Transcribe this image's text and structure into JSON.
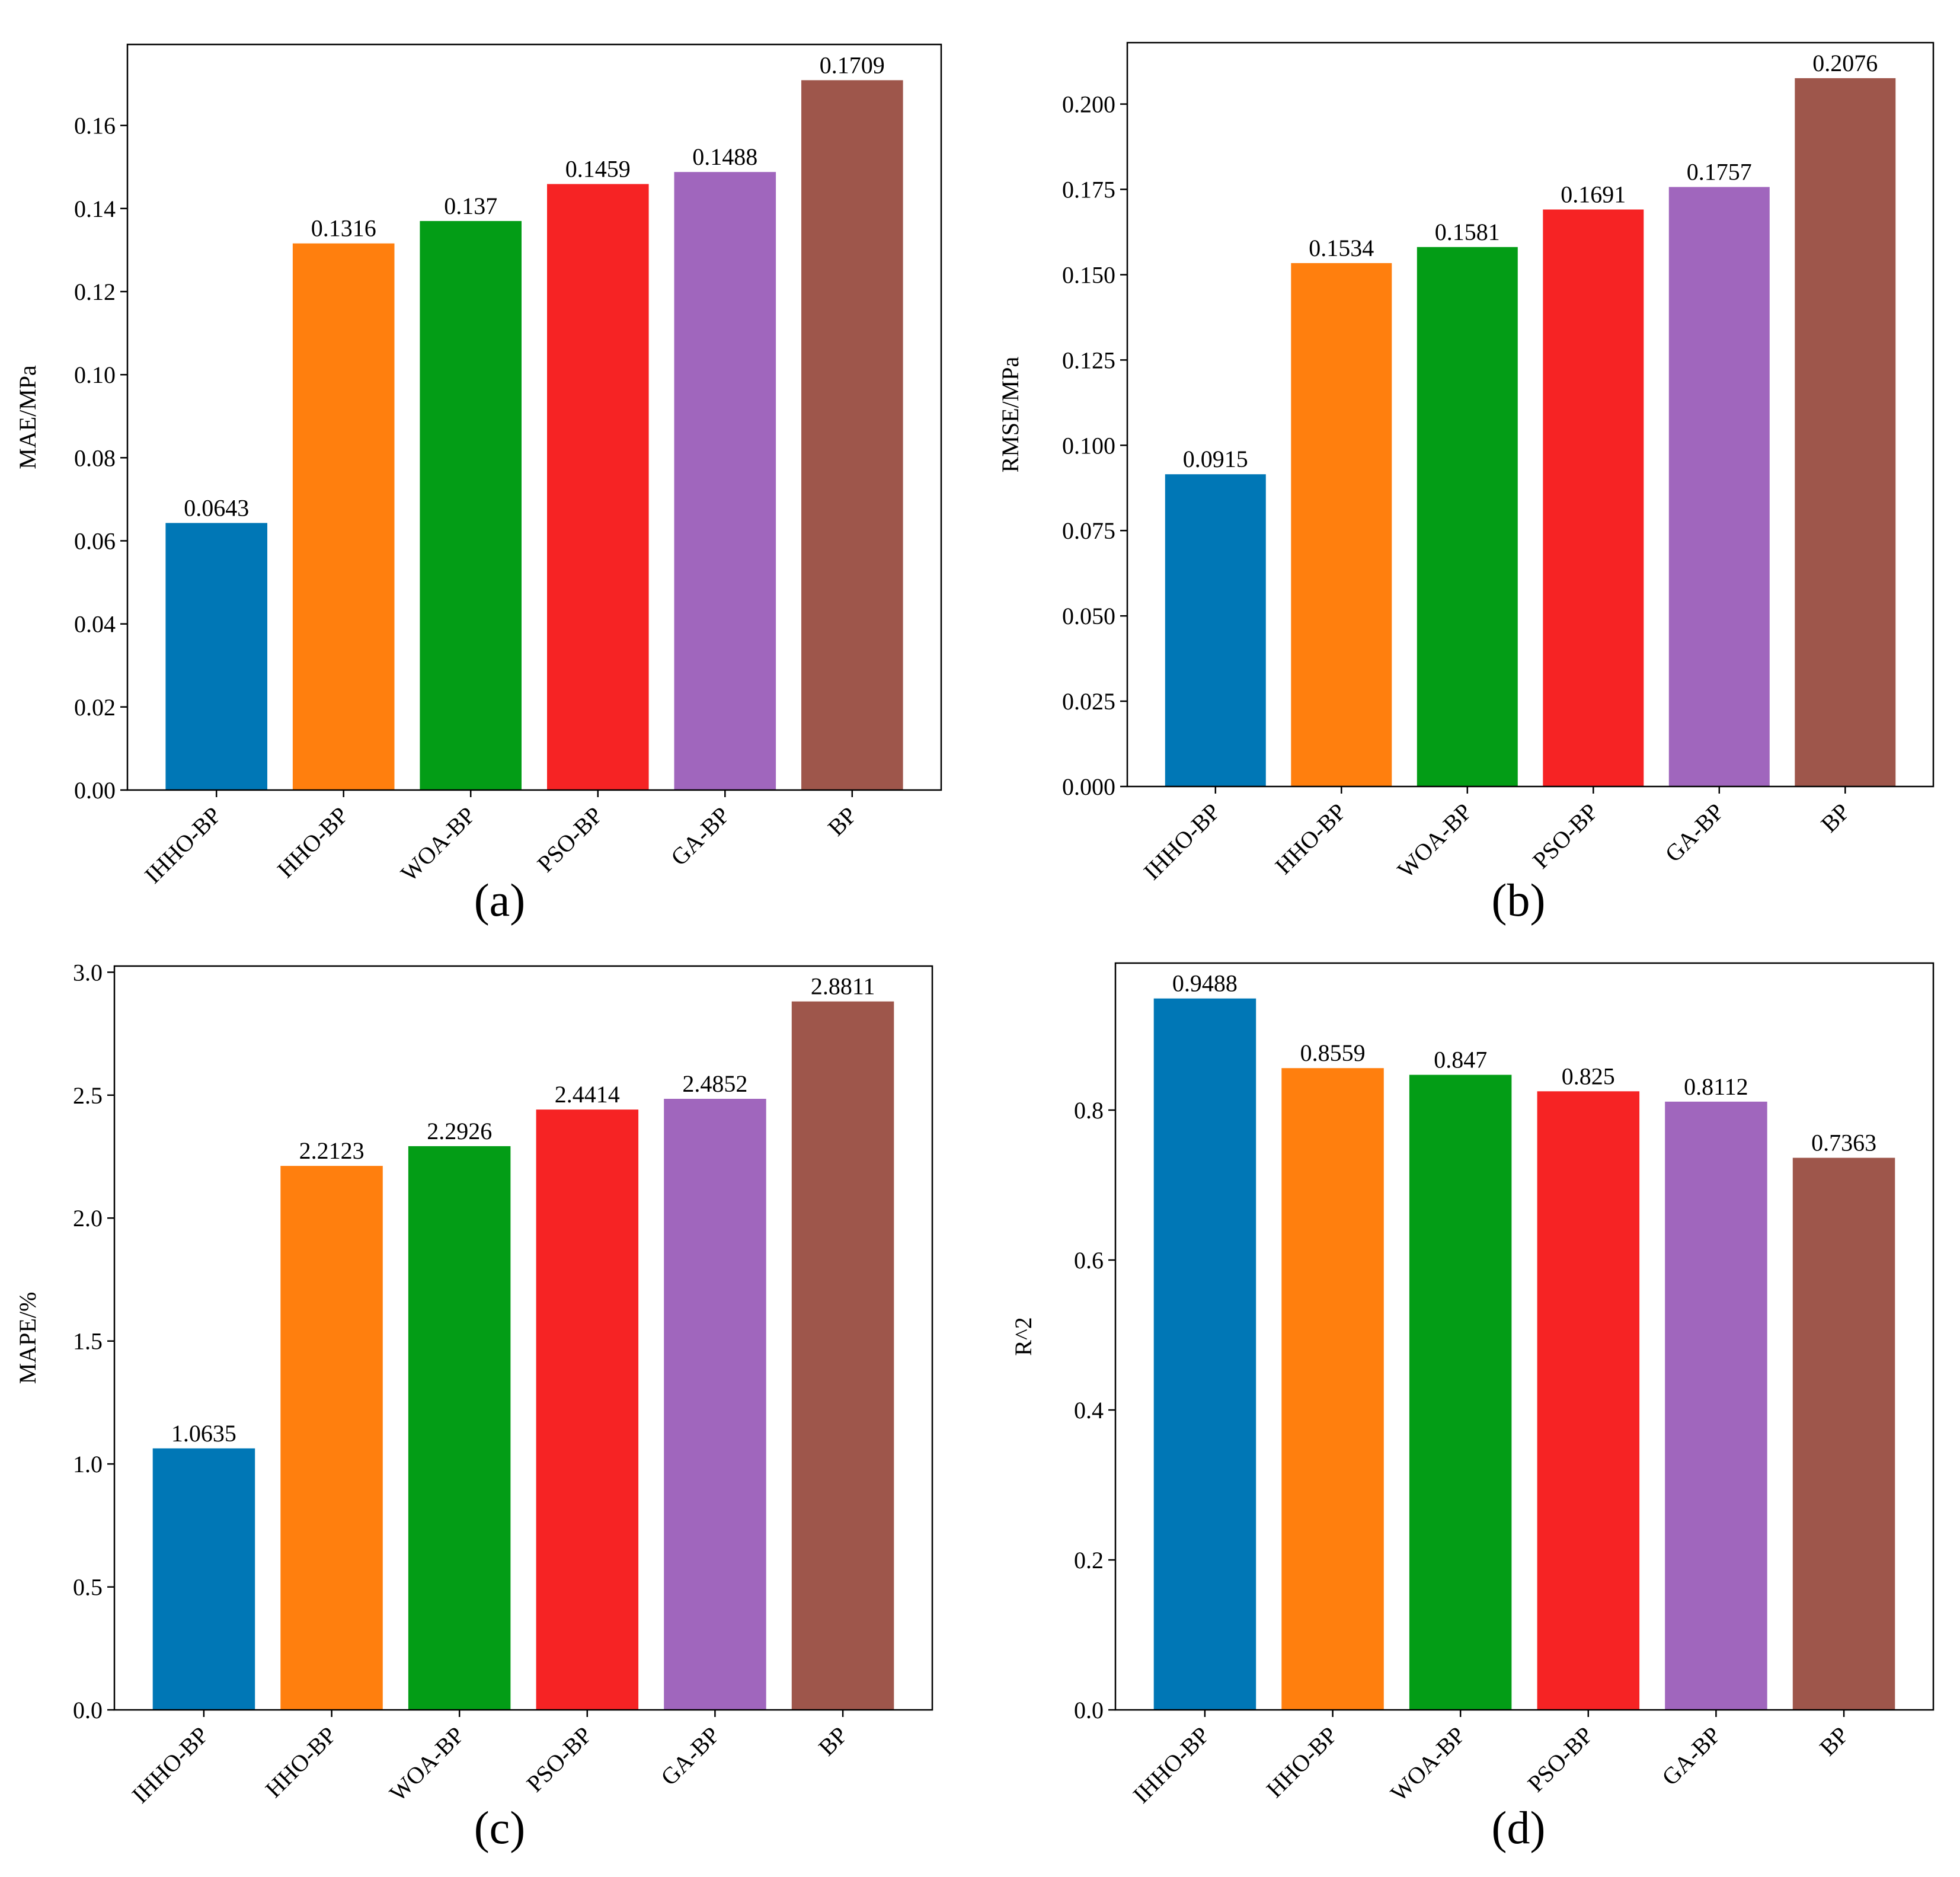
{
  "colors": [
    "#0077b6",
    "#ff7f0e",
    "#039d16",
    "#f62324",
    "#a066bd",
    "#9e564b"
  ],
  "chart_data": [
    {
      "type": "bar",
      "panel": "(a)",
      "ylabel": "MAE/MPa",
      "categories": [
        "IHHO-BP",
        "HHO-BP",
        "WOA-BP",
        "PSO-BP",
        "GA-BP",
        "BP"
      ],
      "values": [
        0.0643,
        0.1316,
        0.137,
        0.1459,
        0.1488,
        0.1709
      ],
      "value_labels": [
        "0.0643",
        "0.1316",
        "0.137",
        "0.1459",
        "0.1488",
        "0.1709"
      ],
      "ylim": [
        0,
        0.1795
      ],
      "yticks": [
        0,
        0.02,
        0.04,
        0.06,
        0.08,
        0.1,
        0.12,
        0.14,
        0.16
      ],
      "ytick_labels": [
        "0.00",
        "0.02",
        "0.04",
        "0.06",
        "0.08",
        "0.10",
        "0.12",
        "0.14",
        "0.16"
      ],
      "grid": false
    },
    {
      "type": "bar",
      "panel": "(b)",
      "ylabel": "RMSE/MPa",
      "categories": [
        "IHHO-BP",
        "HHO-BP",
        "WOA-BP",
        "PSO-BP",
        "GA-BP",
        "BP"
      ],
      "values": [
        0.0915,
        0.1534,
        0.1581,
        0.1691,
        0.1757,
        0.2076
      ],
      "value_labels": [
        "0.0915",
        "0.1534",
        "0.1581",
        "0.1691",
        "0.1757",
        "0.2076"
      ],
      "ylim": [
        0,
        0.218
      ],
      "yticks": [
        0,
        0.025,
        0.05,
        0.075,
        0.1,
        0.125,
        0.15,
        0.175,
        0.2
      ],
      "ytick_labels": [
        "0.000",
        "0.025",
        "0.050",
        "0.075",
        "0.100",
        "0.125",
        "0.150",
        "0.175",
        "0.200"
      ],
      "grid": false
    },
    {
      "type": "bar",
      "panel": "(c)",
      "ylabel": "MAPE/%",
      "categories": [
        "IHHO-BP",
        "HHO-BP",
        "WOA-BP",
        "PSO-BP",
        "GA-BP",
        "BP"
      ],
      "values": [
        1.0635,
        2.2123,
        2.2926,
        2.4414,
        2.4852,
        2.8811
      ],
      "value_labels": [
        "1.0635",
        "2.2123",
        "2.2926",
        "2.4414",
        "2.4852",
        "2.8811"
      ],
      "ylim": [
        0,
        3.025
      ],
      "yticks": [
        0,
        0.5,
        1,
        1.5,
        2,
        2.5,
        3
      ],
      "ytick_labels": [
        "0.0",
        "0.5",
        "1.0",
        "1.5",
        "2.0",
        "2.5",
        "3.0"
      ],
      "grid": false
    },
    {
      "type": "bar",
      "panel": "(d)",
      "ylabel": "R^2",
      "categories": [
        "IHHO-BP",
        "HHO-BP",
        "WOA-BP",
        "PSO-BP",
        "GA-BP",
        "BP"
      ],
      "values": [
        0.9488,
        0.8559,
        0.847,
        0.825,
        0.8112,
        0.7363
      ],
      "value_labels": [
        "0.9488",
        "0.8559",
        "0.847",
        "0.825",
        "0.8112",
        "0.7363"
      ],
      "ylim": [
        0,
        0.996
      ],
      "yticks": [
        0,
        0.2,
        0.4,
        0.6,
        0.8
      ],
      "ytick_labels": [
        "0.0",
        "0.2",
        "0.4",
        "0.6",
        "0.8"
      ],
      "grid": false
    }
  ]
}
